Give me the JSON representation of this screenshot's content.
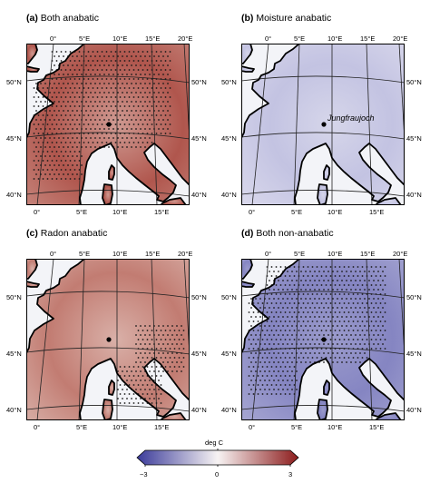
{
  "panels": [
    {
      "id": "a",
      "letter": "(a)",
      "title": "Both anabatic",
      "mode": "red",
      "stipple": "wide",
      "station_label": ""
    },
    {
      "id": "b",
      "letter": "(b)",
      "title": "Moisture anabatic",
      "mode": "lightblue",
      "stipple": "none",
      "station_label": "Jungfraujoch"
    },
    {
      "id": "c",
      "letter": "(c)",
      "title": "Radon anabatic",
      "mode": "lightred",
      "stipple": "east",
      "station_label": ""
    },
    {
      "id": "d",
      "letter": "(d)",
      "title": "Both non-anabatic",
      "mode": "blue",
      "stipple": "wide",
      "station_label": ""
    }
  ],
  "axes": {
    "top_lon_ticks": [
      "0°",
      "5°E",
      "10°E",
      "15°E",
      "20°E"
    ],
    "bottom_lon_ticks": [
      "0°",
      "5°E",
      "10°E",
      "15°E"
    ],
    "lat_ticks": [
      "50°N",
      "45°N",
      "40°N"
    ]
  },
  "colorbar": {
    "unit": "deg C",
    "ticks": [
      "−3",
      "0",
      "3"
    ],
    "range": [
      -3,
      3
    ],
    "colors": {
      "low": "#3b3b9a",
      "mid": "#f7f3f3",
      "high": "#8c1c1c"
    }
  },
  "station_marker": {
    "name": "Jungfraujoch",
    "lon": 7.98,
    "lat": 46.55
  }
}
